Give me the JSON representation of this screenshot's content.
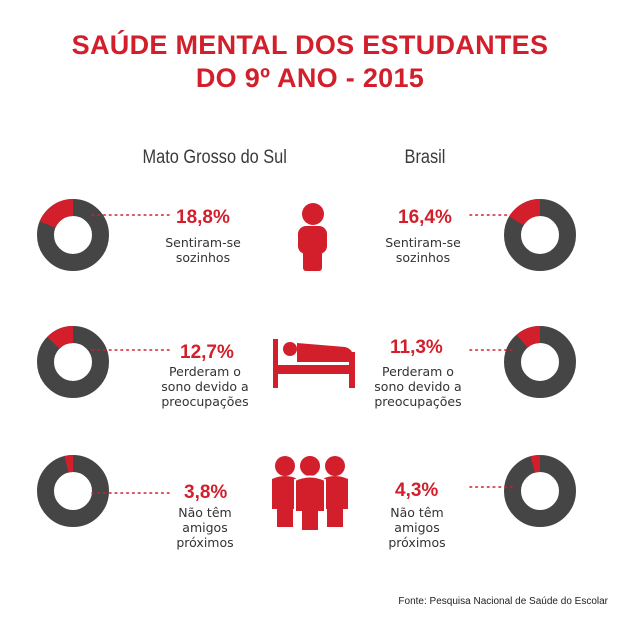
{
  "title_line1": "SAÚDE MENTAL DOS ESTUDANTES",
  "title_line2": "DO 9º ANO - 2015",
  "columns": {
    "left": "Mato Grosso do Sul",
    "right": "Brasil"
  },
  "colors": {
    "accent": "#d21f2b",
    "ring": "#454545"
  },
  "icons": [
    "person-icon",
    "bed-icon",
    "group-icon"
  ],
  "chart_data": {
    "type": "pie",
    "categories": [
      "Sentiram-se sozinhos",
      "Perderam o sono devido a preocupações",
      "Não têm amigos próximos"
    ],
    "series": [
      {
        "name": "Mato Grosso do Sul",
        "values": [
          18.8,
          12.7,
          3.8
        ],
        "labels": [
          "18,8%",
          "12,7%",
          "3,8%"
        ]
      },
      {
        "name": "Brasil",
        "values": [
          16.4,
          11.3,
          4.3
        ],
        "labels": [
          "16,4%",
          "11,3%",
          "4,3%"
        ]
      }
    ]
  },
  "rows": [
    {
      "left_pct": "18,8%",
      "right_pct": "16,4%",
      "text": [
        "Sentiram-se",
        "sozinhos"
      ]
    },
    {
      "left_pct": "12,7%",
      "right_pct": "11,3%",
      "text": [
        "Perderam o",
        "sono devido a",
        "preocupações"
      ]
    },
    {
      "left_pct": "3,8%",
      "right_pct": "4,3%",
      "text": [
        "Não têm",
        "amigos",
        "próximos"
      ]
    }
  ],
  "source": "Fonte: Pesquisa Nacional de Saúde do Escolar"
}
